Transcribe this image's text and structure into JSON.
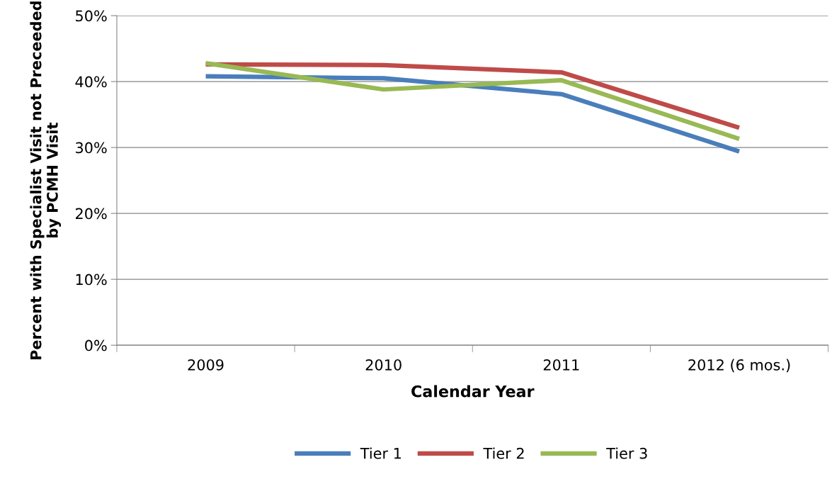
{
  "chart_data": {
    "type": "line",
    "xlabel": "Calendar Year",
    "ylabel": "Percent with Specialist Visit not Preceeded\nby PCMH Visit",
    "categories": [
      "2009",
      "2010",
      "2011",
      "2012 (6 mos.)"
    ],
    "series": [
      {
        "name": "Tier 1",
        "color": "#4a7ebb",
        "values": [
          40.8,
          40.5,
          38.1,
          29.4
        ]
      },
      {
        "name": "Tier 2",
        "color": "#be4b48",
        "values": [
          42.6,
          42.5,
          41.4,
          33.0
        ]
      },
      {
        "name": "Tier 3",
        "color": "#98b954",
        "values": [
          42.8,
          38.8,
          40.2,
          31.3
        ]
      }
    ],
    "ylim": [
      0,
      50
    ],
    "yticks": [
      {
        "value": 0,
        "label": "0%"
      },
      {
        "value": 10,
        "label": "10%"
      },
      {
        "value": 20,
        "label": "20%"
      },
      {
        "value": 30,
        "label": "30%"
      },
      {
        "value": 40,
        "label": "40%"
      },
      {
        "value": 50,
        "label": "50%"
      }
    ],
    "grid": "y",
    "legend": "bottom",
    "marker": "none",
    "line_style": "solid"
  }
}
